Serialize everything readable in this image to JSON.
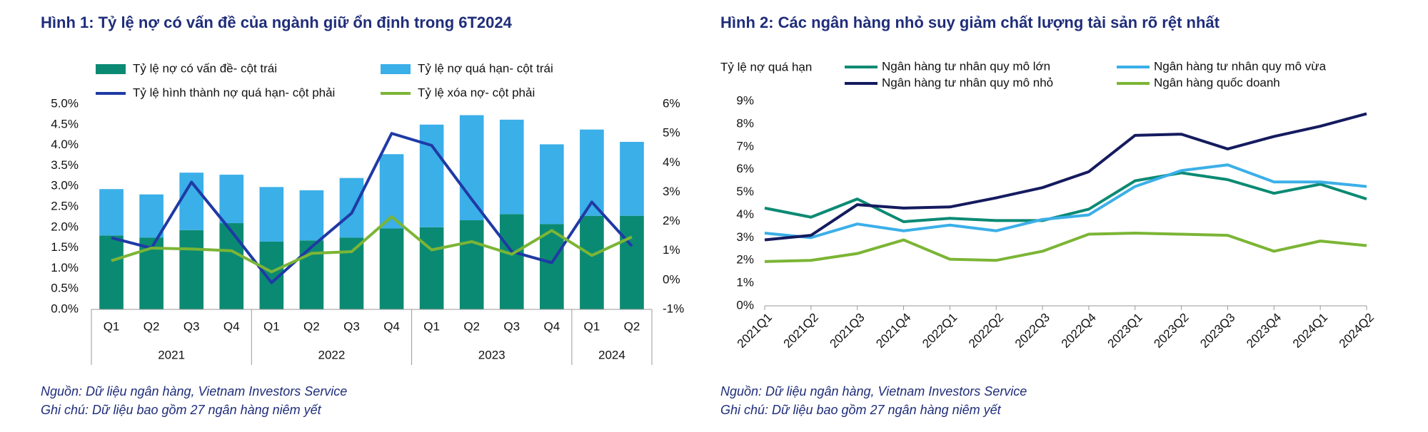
{
  "chart_data": [
    {
      "type": "bar",
      "title": "Hình 1: Tỷ lệ nợ có vấn đề của ngành giữ ổn định trong 6T2024",
      "categories": [
        "Q1",
        "Q2",
        "Q3",
        "Q4",
        "Q1",
        "Q2",
        "Q3",
        "Q4",
        "Q1",
        "Q2",
        "Q3",
        "Q4",
        "Q1",
        "Q2"
      ],
      "groups": [
        {
          "label": "2021",
          "count": 4
        },
        {
          "label": "2022",
          "count": 4
        },
        {
          "label": "2023",
          "count": 4
        },
        {
          "label": "2024",
          "count": 2
        }
      ],
      "stacked": true,
      "series": [
        {
          "name": "Tỷ lệ nợ có vấn đề- cột trái",
          "color": "#0b8a73",
          "values": [
            1.8,
            1.75,
            1.93,
            2.1,
            1.65,
            1.68,
            1.75,
            1.97,
            2.0,
            2.17,
            2.32,
            2.08,
            2.28,
            2.28
          ]
        },
        {
          "name": "Tỷ lệ nợ quá hạn- cột trái",
          "color": "#3bafe8",
          "values": [
            1.13,
            1.05,
            1.4,
            1.18,
            1.33,
            1.22,
            1.45,
            1.81,
            2.5,
            2.56,
            2.3,
            1.94,
            2.1,
            1.8
          ]
        },
        {
          "name": "Tỷ lệ hình thành nợ quá hạn- cột phải",
          "type": "line",
          "axis": "y2",
          "color": "#1f3aa5",
          "values": [
            1.44,
            1.09,
            3.34,
            1.66,
            -0.09,
            1.13,
            2.28,
            5.0,
            4.59,
            2.75,
            0.97,
            0.59,
            2.66,
            1.16
          ]
        },
        {
          "name": "Tỷ lệ xóa nợ- cột phải",
          "type": "line",
          "axis": "y2",
          "color": "#7bb535",
          "values": [
            0.66,
            1.09,
            1.06,
            1.0,
            0.28,
            0.91,
            0.97,
            2.16,
            1.03,
            1.31,
            0.88,
            1.69,
            0.84,
            1.47
          ]
        }
      ],
      "ylim": [
        0,
        5
      ],
      "yticks": [
        {
          "value": 0,
          "label": "0.0%"
        },
        {
          "value": 0.5,
          "label": "0.5%"
        },
        {
          "value": 1,
          "label": "1.0%"
        },
        {
          "value": 1.5,
          "label": "1.5%"
        },
        {
          "value": 2,
          "label": "2.0%"
        },
        {
          "value": 2.5,
          "label": "2.5%"
        },
        {
          "value": 3,
          "label": "3.0%"
        },
        {
          "value": 3.5,
          "label": "3.5%"
        },
        {
          "value": 4,
          "label": "4.0%"
        },
        {
          "value": 4.5,
          "label": "4.5%"
        },
        {
          "value": 5,
          "label": "5.0%"
        }
      ],
      "y2lim": [
        -1,
        6
      ],
      "y2ticks": [
        {
          "value": -1,
          "label": "-1%"
        },
        {
          "value": 0,
          "label": "0%"
        },
        {
          "value": 1,
          "label": "1%"
        },
        {
          "value": 2,
          "label": "2%"
        },
        {
          "value": 3,
          "label": "3%"
        },
        {
          "value": 4,
          "label": "4%"
        },
        {
          "value": 5,
          "label": "5%"
        },
        {
          "value": 6,
          "label": "6%"
        }
      ],
      "notes": [
        "Nguồn: Dữ liệu ngân hàng, Vietnam Investors Service",
        "Ghi chú: Dữ liệu bao gồm 27 ngân hàng niêm yết"
      ]
    },
    {
      "type": "line",
      "title": "Hình 2: Các ngân hàng nhỏ suy giảm chất lượng tài sản rõ rệt nhất",
      "y_label": "Tỷ lệ nợ quá hạn",
      "categories": [
        "2021Q1",
        "2021Q2",
        "2021Q3",
        "2021Q4",
        "2022Q1",
        "2022Q2",
        "2022Q3",
        "2022Q4",
        "2023Q1",
        "2023Q2",
        "2023Q3",
        "2023Q4",
        "2024Q1",
        "2024Q2"
      ],
      "series": [
        {
          "name": "Ngân hàng tư nhân quy mô lớn",
          "color": "#0b8a73",
          "values": [
            4.3,
            3.9,
            4.7,
            3.7,
            3.85,
            3.75,
            3.75,
            4.25,
            5.5,
            5.85,
            5.55,
            4.95,
            5.35,
            4.7
          ]
        },
        {
          "name": "Ngân hàng tư nhân quy mô vừa",
          "color": "#3bafe8",
          "values": [
            3.2,
            3.0,
            3.6,
            3.3,
            3.55,
            3.3,
            3.8,
            4.0,
            5.25,
            5.95,
            6.2,
            5.45,
            5.45,
            5.25
          ]
        },
        {
          "name": "Ngân hàng tư nhân quy mô nhỏ",
          "color": "#141b5e",
          "values": [
            2.9,
            3.1,
            4.45,
            4.3,
            4.35,
            4.75,
            5.2,
            5.9,
            7.5,
            7.55,
            6.9,
            7.45,
            7.9,
            8.45
          ]
        },
        {
          "name": "Ngân hàng quốc doanh",
          "color": "#7bb535",
          "values": [
            1.95,
            2.0,
            2.3,
            2.9,
            2.05,
            2.0,
            2.4,
            3.15,
            3.2,
            3.15,
            3.1,
            2.4,
            2.85,
            2.65
          ]
        }
      ],
      "ylim": [
        0,
        9
      ],
      "yticks": [
        {
          "value": 0,
          "label": "0%"
        },
        {
          "value": 1,
          "label": "1%"
        },
        {
          "value": 2,
          "label": "2%"
        },
        {
          "value": 3,
          "label": "3%"
        },
        {
          "value": 4,
          "label": "4%"
        },
        {
          "value": 5,
          "label": "5%"
        },
        {
          "value": 6,
          "label": "6%"
        },
        {
          "value": 7,
          "label": "7%"
        },
        {
          "value": 8,
          "label": "8%"
        },
        {
          "value": 9,
          "label": "9%"
        }
      ],
      "notes": [
        "Nguồn: Dữ liệu ngân hàng, Vietnam Investors Service",
        "Ghi chú: Dữ liệu bao gồm 27 ngân hàng niêm yết"
      ]
    }
  ]
}
